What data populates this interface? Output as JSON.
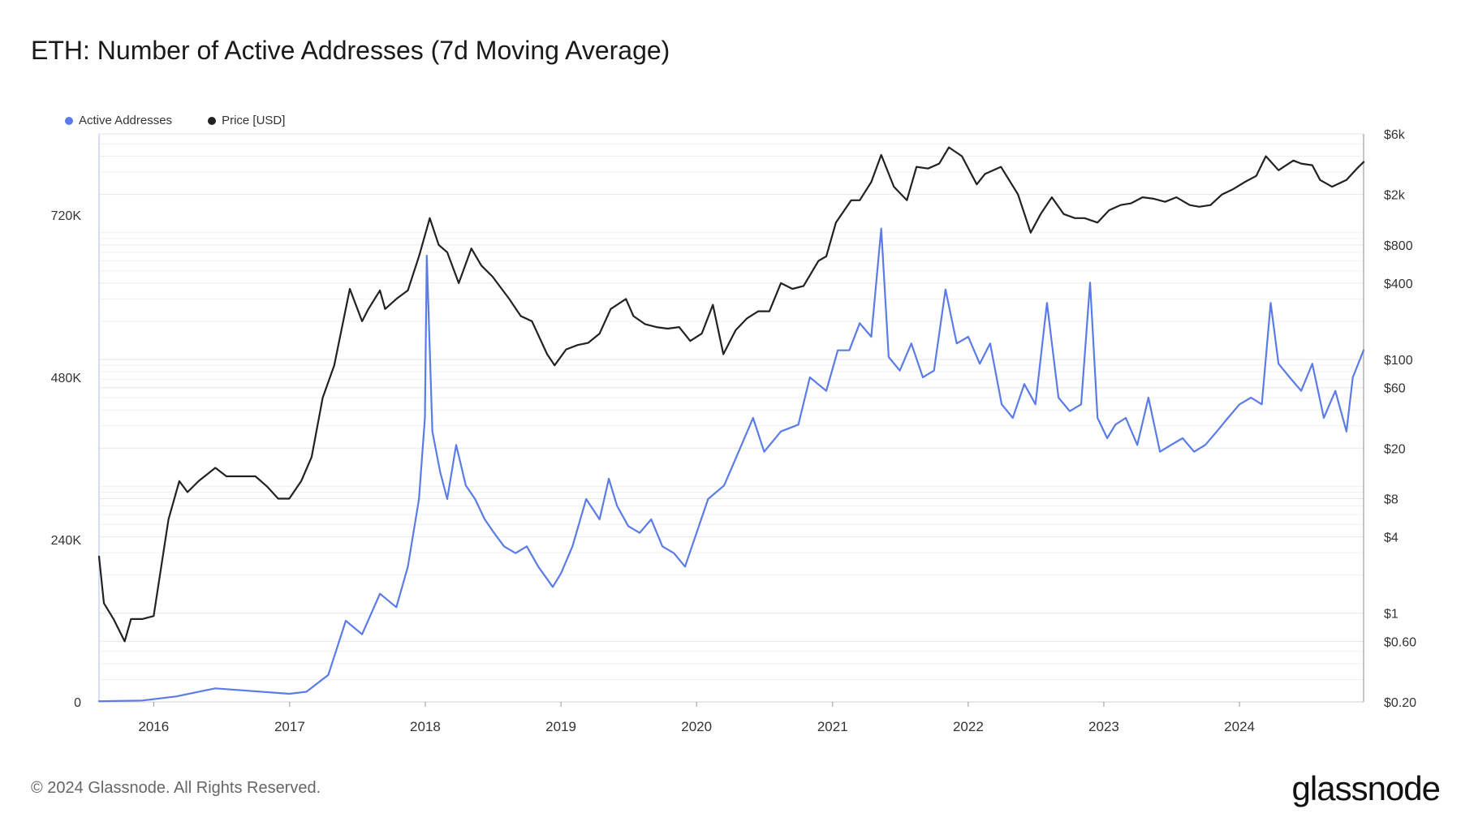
{
  "title": "ETH: Number of Active Addresses (7d Moving Average)",
  "legend": [
    {
      "label": "Active Addresses",
      "color": "#5b7be8"
    },
    {
      "label": "Price [USD]",
      "color": "#222222"
    }
  ],
  "footer": "© 2024 Glassnode. All Rights Reserved.",
  "brand": "glassnode",
  "chart_data": {
    "type": "line",
    "x_tick_labels": [
      "2016",
      "2017",
      "2018",
      "2019",
      "2020",
      "2021",
      "2022",
      "2023",
      "2024"
    ],
    "x_range": [
      "2015-08-07",
      "2024-11-30"
    ],
    "y_left": {
      "tick_labels": [
        "0",
        "240K",
        "480K",
        "720K"
      ],
      "ticks": [
        0,
        240000,
        480000,
        720000
      ],
      "range": [
        0,
        840000
      ]
    },
    "y_right": {
      "scale": "log",
      "tick_labels": [
        "$0.20",
        "$0.60",
        "$1",
        "$4",
        "$8",
        "$20",
        "$60",
        "$100",
        "$400",
        "$800",
        "$2k",
        "$6k"
      ],
      "ticks": [
        0.2,
        0.6,
        1,
        4,
        8,
        20,
        60,
        100,
        400,
        800,
        2000,
        6000
      ],
      "range": [
        0.2,
        6000
      ]
    },
    "grid": true,
    "legend_position": "top-left",
    "series": [
      {
        "name": "Active Addresses",
        "axis": "left",
        "color": "#5b7be8",
        "x": [
          "2015-08-07",
          "2015-12-01",
          "2016-03-01",
          "2016-06-15",
          "2016-12-31",
          "2017-02-15",
          "2017-04-15",
          "2017-06-01",
          "2017-07-15",
          "2017-09-01",
          "2017-10-15",
          "2017-11-15",
          "2017-12-15",
          "2017-12-31",
          "2018-01-05",
          "2018-01-20",
          "2018-02-10",
          "2018-03-01",
          "2018-03-25",
          "2018-04-20",
          "2018-05-15",
          "2018-06-10",
          "2018-07-05",
          "2018-08-01",
          "2018-09-01",
          "2018-10-01",
          "2018-11-01",
          "2018-12-10",
          "2019-01-01",
          "2019-02-01",
          "2019-03-10",
          "2019-04-15",
          "2019-05-10",
          "2019-06-01",
          "2019-07-01",
          "2019-08-01",
          "2019-09-01",
          "2019-10-01",
          "2019-11-01",
          "2019-12-01",
          "2020-01-01",
          "2020-02-01",
          "2020-03-15",
          "2020-05-01",
          "2020-06-01",
          "2020-07-01",
          "2020-08-15",
          "2020-10-01",
          "2020-11-01",
          "2020-12-15",
          "2021-01-15",
          "2021-02-15",
          "2021-03-15",
          "2021-04-15",
          "2021-05-12",
          "2021-06-01",
          "2021-07-01",
          "2021-08-01",
          "2021-09-01",
          "2021-10-01",
          "2021-11-01",
          "2021-12-01",
          "2022-01-01",
          "2022-02-01",
          "2022-03-01",
          "2022-04-01",
          "2022-05-01",
          "2022-06-01",
          "2022-07-01",
          "2022-08-01",
          "2022-09-01",
          "2022-10-01",
          "2022-11-01",
          "2022-11-25",
          "2022-12-15",
          "2023-01-10",
          "2023-02-01",
          "2023-03-01",
          "2023-04-01",
          "2023-05-01",
          "2023-06-01",
          "2023-07-01",
          "2023-08-01",
          "2023-09-01",
          "2023-10-01",
          "2023-11-01",
          "2023-12-01",
          "2024-01-01",
          "2024-02-01",
          "2024-03-01",
          "2024-03-25",
          "2024-04-15",
          "2024-05-15",
          "2024-06-15",
          "2024-07-15",
          "2024-08-15",
          "2024-09-15",
          "2024-10-15",
          "2024-11-01",
          "2024-11-30"
        ],
        "values": [
          1000,
          2000,
          8000,
          20000,
          12000,
          15000,
          40000,
          120000,
          100000,
          160000,
          140000,
          200000,
          300000,
          420000,
          660000,
          400000,
          340000,
          300000,
          380000,
          320000,
          300000,
          270000,
          250000,
          230000,
          220000,
          230000,
          200000,
          170000,
          190000,
          230000,
          300000,
          270000,
          330000,
          290000,
          260000,
          250000,
          270000,
          230000,
          220000,
          200000,
          250000,
          300000,
          320000,
          380000,
          420000,
          370000,
          400000,
          410000,
          480000,
          460000,
          520000,
          520000,
          560000,
          540000,
          700000,
          510000,
          490000,
          530000,
          480000,
          490000,
          610000,
          530000,
          540000,
          500000,
          530000,
          440000,
          420000,
          470000,
          440000,
          590000,
          450000,
          430000,
          440000,
          620000,
          420000,
          390000,
          410000,
          420000,
          380000,
          450000,
          370000,
          380000,
          390000,
          370000,
          380000,
          400000,
          420000,
          440000,
          450000,
          440000,
          590000,
          500000,
          480000,
          460000,
          500000,
          420000,
          460000,
          400000,
          480000,
          520000
        ]
      },
      {
        "name": "Price [USD]",
        "axis": "right",
        "color": "#222222",
        "x": [
          "2015-08-07",
          "2015-08-20",
          "2015-09-15",
          "2015-10-15",
          "2015-11-01",
          "2015-12-01",
          "2016-01-01",
          "2016-02-10",
          "2016-03-10",
          "2016-04-01",
          "2016-05-01",
          "2016-06-15",
          "2016-07-15",
          "2016-09-01",
          "2016-10-01",
          "2016-11-01",
          "2016-12-01",
          "2016-12-31",
          "2017-02-01",
          "2017-03-01",
          "2017-03-31",
          "2017-05-01",
          "2017-06-12",
          "2017-07-15",
          "2017-08-01",
          "2017-09-01",
          "2017-09-15",
          "2017-10-15",
          "2017-11-15",
          "2017-12-15",
          "2018-01-13",
          "2018-02-06",
          "2018-03-01",
          "2018-04-01",
          "2018-05-05",
          "2018-06-01",
          "2018-07-01",
          "2018-08-15",
          "2018-09-15",
          "2018-10-15",
          "2018-11-25",
          "2018-12-15",
          "2019-01-15",
          "2019-02-15",
          "2019-03-15",
          "2019-04-15",
          "2019-05-15",
          "2019-06-25",
          "2019-07-15",
          "2019-08-15",
          "2019-09-15",
          "2019-10-15",
          "2019-11-15",
          "2019-12-15",
          "2020-01-15",
          "2020-02-14",
          "2020-03-13",
          "2020-04-15",
          "2020-05-15",
          "2020-06-15",
          "2020-07-15",
          "2020-08-15",
          "2020-09-15",
          "2020-10-15",
          "2020-11-24",
          "2020-12-15",
          "2021-01-10",
          "2021-02-20",
          "2021-03-15",
          "2021-04-15",
          "2021-05-12",
          "2021-06-15",
          "2021-07-20",
          "2021-08-15",
          "2021-09-15",
          "2021-10-15",
          "2021-11-10",
          "2021-12-15",
          "2022-01-24",
          "2022-02-15",
          "2022-03-30",
          "2022-05-15",
          "2022-06-18",
          "2022-07-15",
          "2022-08-14",
          "2022-09-15",
          "2022-10-15",
          "2022-11-10",
          "2022-12-15",
          "2023-01-15",
          "2023-02-15",
          "2023-03-15",
          "2023-04-15",
          "2023-05-15",
          "2023-06-15",
          "2023-07-15",
          "2023-08-20",
          "2023-09-15",
          "2023-10-15",
          "2023-11-15",
          "2023-12-15",
          "2024-01-15",
          "2024-02-15",
          "2024-03-12",
          "2024-04-15",
          "2024-05-25",
          "2024-06-15",
          "2024-07-15",
          "2024-08-05",
          "2024-09-06",
          "2024-10-15",
          "2024-11-12",
          "2024-11-30"
        ],
        "values": [
          2.8,
          1.2,
          0.9,
          0.6,
          0.9,
          0.9,
          0.95,
          5.5,
          11,
          9,
          11,
          14,
          12,
          12,
          12,
          10,
          8,
          8,
          11,
          17,
          50,
          90,
          360,
          200,
          250,
          350,
          250,
          300,
          350,
          650,
          1300,
          800,
          700,
          400,
          750,
          550,
          450,
          300,
          220,
          200,
          110,
          90,
          120,
          130,
          135,
          160,
          250,
          300,
          220,
          190,
          180,
          175,
          180,
          140,
          160,
          270,
          110,
          170,
          210,
          240,
          240,
          400,
          360,
          380,
          600,
          650,
          1200,
          1800,
          1800,
          2500,
          4100,
          2300,
          1800,
          3300,
          3200,
          3500,
          4700,
          4000,
          2400,
          2900,
          3300,
          2000,
          1000,
          1400,
          1900,
          1400,
          1300,
          1300,
          1200,
          1500,
          1650,
          1700,
          1900,
          1850,
          1750,
          1900,
          1650,
          1600,
          1650,
          2000,
          2200,
          2500,
          2800,
          4000,
          3100,
          3700,
          3500,
          3400,
          2600,
          2300,
          2600,
          3200,
          3600
        ]
      }
    ]
  }
}
